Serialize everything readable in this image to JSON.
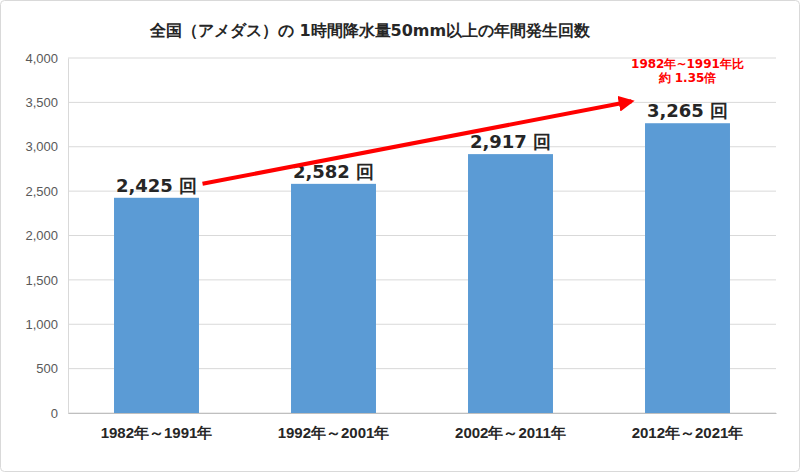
{
  "chart_data": {
    "type": "bar",
    "title": "全国（アメダス）の 1時間降水量50mm以上の年間発生回数",
    "categories": [
      "1982年～1991年",
      "1992年～2001年",
      "2002年～2011年",
      "2012年～2021年"
    ],
    "values": [
      2425,
      2582,
      2917,
      3265
    ],
    "value_labels": [
      "2,425 回",
      "2,582 回",
      "2,917 回",
      "3,265 回"
    ],
    "color": "#5b9bd5",
    "ylim": [
      0,
      4000
    ],
    "yticks": [
      0,
      500,
      {
        "value": 1000,
        "label": "1,000"
      },
      {
        "value": 1500,
        "label": "1,500"
      },
      {
        "value": 2000,
        "label": "2,000"
      },
      {
        "value": 2500,
        "label": "2,500"
      },
      {
        "value": 3000,
        "label": "3,000"
      },
      {
        "value": 3500,
        "label": "3,500"
      },
      {
        "value": 4000,
        "label": "4,000"
      }
    ],
    "grid": true,
    "data_labels": true,
    "annotation": [
      "1982年~1991年比",
      "約 1.35倍"
    ]
  }
}
